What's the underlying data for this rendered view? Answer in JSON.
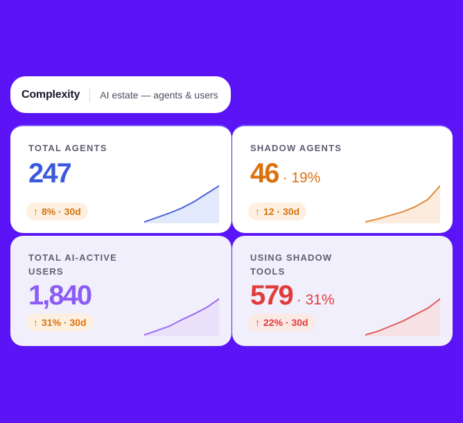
{
  "header": {
    "title": "Complexity",
    "subtitle": "AI estate — agents & users"
  },
  "cards": [
    {
      "label": "TOTAL AGENTS",
      "value": "247",
      "pct": "",
      "badge": "8% · 30d",
      "arrow": "↑",
      "value_color": "#3b5bdb",
      "line_color": "#4c63d8",
      "fill_color": "#dbe3fb",
      "sparkline": [
        0,
        0.12,
        0.24,
        0.38,
        0.56,
        0.78,
        1.0
      ]
    },
    {
      "label": "SHADOW AGENTS",
      "value": "46",
      "pct": "· 19%",
      "badge": "12 · 30d",
      "arrow": "↑",
      "value_color": "#d9720f",
      "line_color": "#e08a3a",
      "fill_color": "#fbe7d4",
      "sparkline": [
        0,
        0.08,
        0.18,
        0.28,
        0.42,
        0.62,
        1.0
      ]
    },
    {
      "label": "TOTAL AI-ACTIVE USERS",
      "value": "1,840",
      "pct": "",
      "badge": "31% · 30d",
      "arrow": "↑",
      "value_color": "#8b5cf6",
      "line_color": "#9b6cf0",
      "fill_color": "#e7defa",
      "sparkline": [
        0,
        0.12,
        0.24,
        0.42,
        0.58,
        0.76,
        1.0
      ]
    },
    {
      "label": "USING SHADOW TOOLS",
      "value": "579",
      "pct": "· 31%",
      "badge": "22% · 30d",
      "arrow": "↑",
      "value_color": "#e03c3c",
      "line_color": "#e15a5a",
      "fill_color": "#f7dede",
      "sparkline": [
        0,
        0.1,
        0.24,
        0.38,
        0.56,
        0.74,
        1.0
      ]
    }
  ],
  "colors": {
    "background": "#5a14f5",
    "badge_bg": "#fdf0e0",
    "badge_text": "#d9720f"
  }
}
